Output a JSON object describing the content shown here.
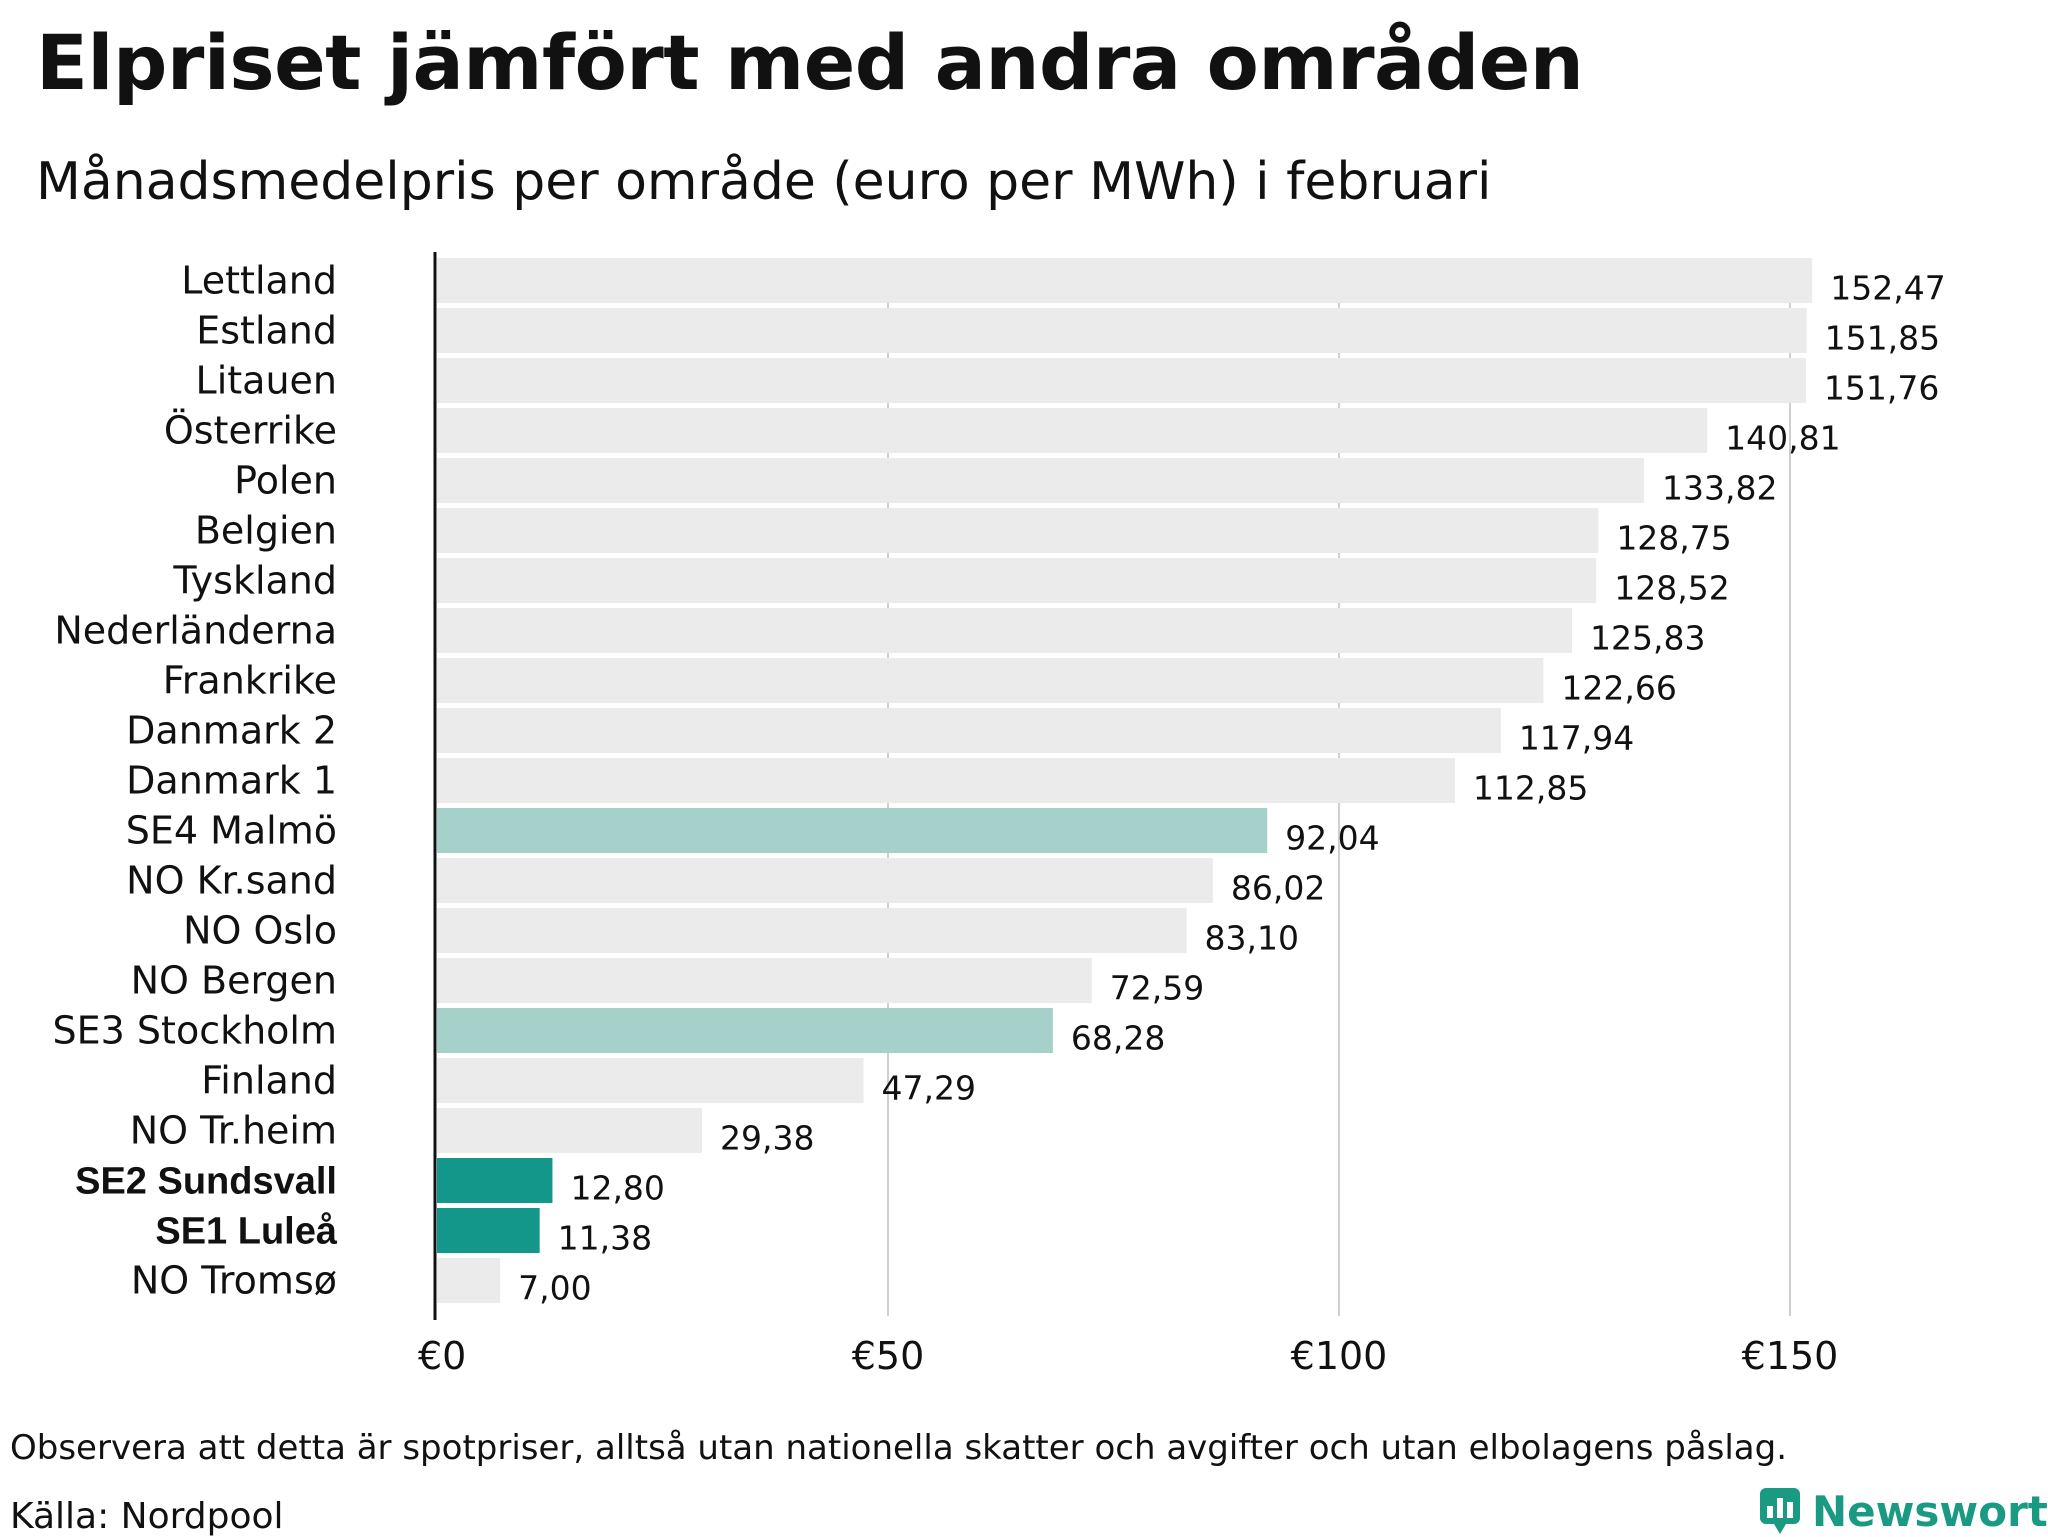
{
  "title": "Elpriset jämfört med andra områden",
  "subtitle": "Månadsmedelpris per område (euro per MWh) i februari",
  "note": "Observera att detta är spotpriser, alltså utan nationella skatter och avgifter och utan elbolagens påslag.",
  "source": "Källa: Nordpool",
  "brand": "Newsworthy",
  "colors": {
    "default_bar": "#ebebeb",
    "highlight_light": "#a6d1cb",
    "highlight_dark": "#13978a",
    "brand": "#1a9a82"
  },
  "chart_data": {
    "type": "bar",
    "orientation": "horizontal",
    "categories": [
      "Lettland",
      "Estland",
      "Litauen",
      "Österrike",
      "Polen",
      "Belgien",
      "Tyskland",
      "Nederländerna",
      "Frankrike",
      "Danmark 2",
      "Danmark 1",
      "SE4 Malmö",
      "NO Kr.sand",
      "NO Oslo",
      "NO Bergen",
      "SE3 Stockholm",
      "Finland",
      "NO Tr.heim",
      "SE2 Sundsvall",
      "SE1 Luleå",
      "NO Tromsø"
    ],
    "values": [
      152.47,
      151.85,
      151.76,
      140.81,
      133.82,
      128.75,
      128.52,
      125.83,
      122.66,
      117.94,
      112.85,
      92.04,
      86.02,
      83.1,
      72.59,
      68.28,
      47.29,
      29.38,
      12.8,
      11.38,
      7.0
    ],
    "value_labels": [
      "152,47",
      "151,85",
      "151,76",
      "140,81",
      "133,82",
      "128,75",
      "128,52",
      "125,83",
      "122,66",
      "117,94",
      "112,85",
      "92,04",
      "86,02",
      "83,10",
      "72,59",
      "68,28",
      "47,29",
      "29,38",
      "12,80",
      "11,38",
      "7,00"
    ],
    "highlight": [
      "none",
      "none",
      "none",
      "none",
      "none",
      "none",
      "none",
      "none",
      "none",
      "none",
      "none",
      "light",
      "none",
      "none",
      "none",
      "light",
      "none",
      "none",
      "dark",
      "dark",
      "none"
    ],
    "xticks": [
      0,
      50,
      100,
      150
    ],
    "xtick_labels": [
      "€0",
      "€50",
      "€100",
      "€150"
    ],
    "xlim": [
      0,
      162
    ],
    "grid": "vertical"
  }
}
